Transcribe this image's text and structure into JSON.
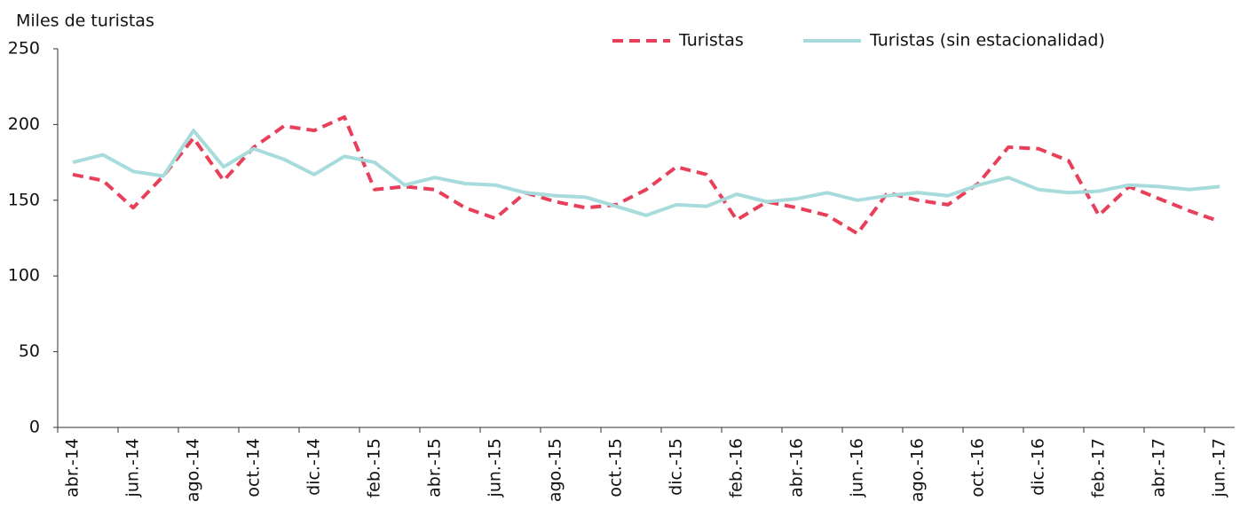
{
  "chart_data": {
    "type": "line",
    "y_axis_label": "Miles de turistas",
    "categories": [
      "abr.-14",
      null,
      "jun.-14",
      null,
      "ago.-14",
      null,
      "oct.-14",
      null,
      "dic.-14",
      null,
      "feb.-15",
      null,
      "abr.-15",
      null,
      "jun.-15",
      null,
      "ago.-15",
      null,
      "oct.-15",
      null,
      "dic.-15",
      null,
      "feb.-16",
      null,
      "abr.-16",
      null,
      "jun.-16",
      null,
      "ago.-16",
      null,
      "oct.-16",
      null,
      "dic.-16",
      null,
      "feb.-17",
      null,
      "abr.-17",
      null,
      "jun.-17"
    ],
    "series": [
      {
        "name": "Turistas",
        "color": "#e8405a",
        "dashed": true,
        "values": [
          167,
          163,
          145,
          166,
          191,
          163,
          185,
          199,
          196,
          205,
          157,
          159,
          157,
          145,
          138,
          155,
          149,
          145,
          147,
          157,
          172,
          167,
          137,
          149,
          145,
          140,
          128,
          155,
          150,
          147,
          161,
          185,
          184,
          176,
          140,
          159,
          151,
          143,
          136
        ]
      },
      {
        "name": "Turistas (sin estacionalidad)",
        "color": "#a8dcdc",
        "dashed": false,
        "values": [
          175,
          180,
          169,
          166,
          196,
          172,
          184,
          177,
          167,
          179,
          175,
          160,
          165,
          161,
          160,
          155,
          153,
          152,
          146,
          140,
          147,
          146,
          154,
          149,
          151,
          155,
          150,
          153,
          155,
          153,
          160,
          165,
          157,
          155,
          156,
          160,
          159,
          157,
          159
        ]
      }
    ],
    "ylim": [
      0,
      250
    ],
    "yticks": [
      0,
      50,
      100,
      150,
      200,
      250
    ],
    "grid": false,
    "legend": "top-right"
  }
}
